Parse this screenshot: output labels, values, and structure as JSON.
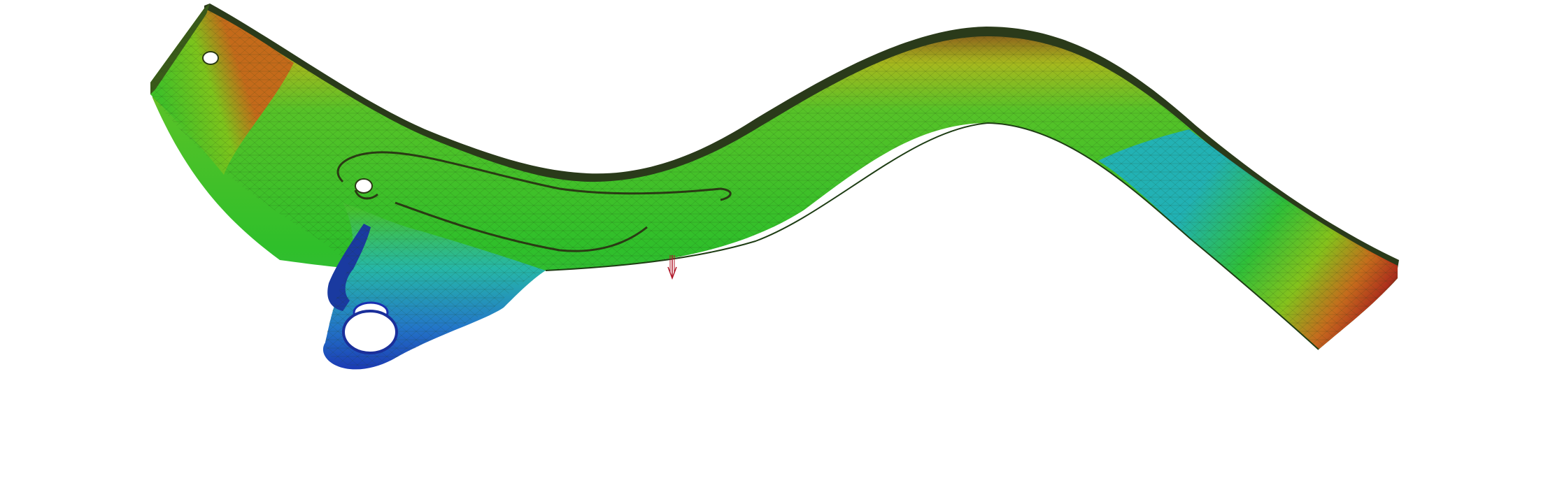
{
  "scene": {
    "background": "#ffffff",
    "subject": "fea-bracket-model",
    "colormap": [
      "#1a2fb0",
      "#1fa3c4",
      "#2fbf2a",
      "#8cc21a",
      "#c9a81c",
      "#c73a1a",
      "#3a2a1a"
    ],
    "load_marker_color": "#b0182a",
    "mesh_line_color": "#1c3a12",
    "icons": {
      "load": "arrow-down-icon"
    }
  }
}
